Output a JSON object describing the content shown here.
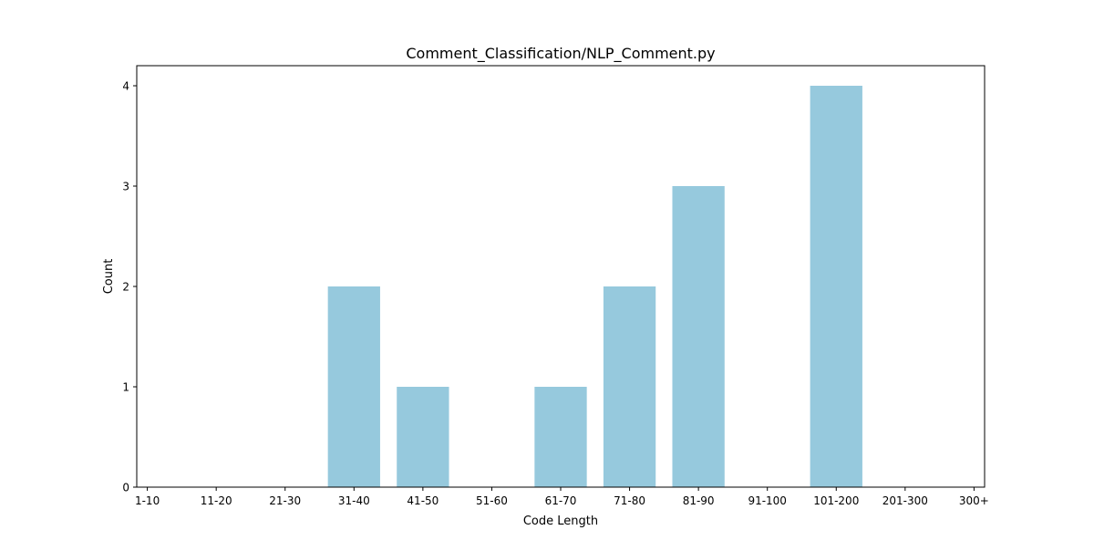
{
  "chart_data": {
    "type": "bar",
    "title": "Comment_Classification/NLP_Comment.py",
    "xlabel": "Code Length",
    "ylabel": "Count",
    "categories": [
      "1-10",
      "11-20",
      "21-30",
      "31-40",
      "41-50",
      "51-60",
      "61-70",
      "71-80",
      "81-90",
      "91-100",
      "101-200",
      "201-300",
      "300+"
    ],
    "values": [
      0,
      0,
      0,
      2,
      1,
      0,
      1,
      2,
      3,
      0,
      4,
      0,
      0
    ],
    "yticks": [
      0,
      1,
      2,
      3,
      4
    ],
    "ylim": [
      0,
      4.2
    ],
    "bar_color": "#96c9dd",
    "grid": false,
    "legend": "none"
  }
}
